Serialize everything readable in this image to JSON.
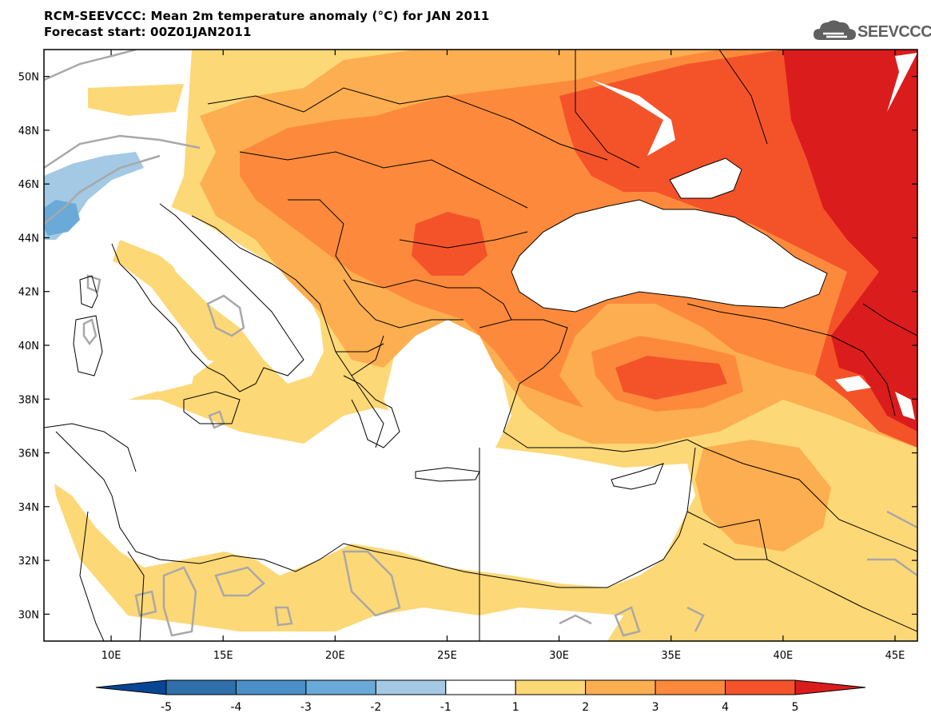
{
  "title": {
    "line1": "RCM-SEEVCCC: Mean 2m temperature anomaly (°C) for JAN 2011",
    "line2": "Forecast start: 00Z01JAN2011"
  },
  "logo": {
    "text": "SEEVCCC",
    "icon": "cloud-icon",
    "color": "#606060"
  },
  "map": {
    "region": "Southeastern Europe, Mediterranean, Anatolia",
    "lon_range": [
      7,
      46
    ],
    "lat_range": [
      29,
      51
    ],
    "lat_labels": [
      "50N",
      "48N",
      "46N",
      "44N",
      "42N",
      "40N",
      "38N",
      "36N",
      "34N",
      "32N",
      "30N"
    ],
    "lon_labels": [
      "10E",
      "15E",
      "20E",
      "25E",
      "30E",
      "35E",
      "40E",
      "45E"
    ]
  },
  "colorbar": {
    "levels": [
      "-5",
      "-4",
      "-3",
      "-2",
      "-1",
      "1",
      "2",
      "3",
      "4",
      "5"
    ],
    "colors": [
      "#084594",
      "#2f6faa",
      "#4a8fc8",
      "#6aaad8",
      "#a3c9e4",
      "#ffffff",
      "#fdd877",
      "#fdae50",
      "#fd8a3c",
      "#f4532a",
      "#db1c1c"
    ]
  },
  "colors": {
    "c1_2": "#fdd877",
    "c2_3": "#fdae50",
    "c3_4": "#fd8a3c",
    "c4_5": "#f4532a",
    "c5p": "#db1c1c",
    "n1_2": "#a3c9e4",
    "n2_3": "#6aaad8",
    "contour": "#a8a8a8"
  }
}
